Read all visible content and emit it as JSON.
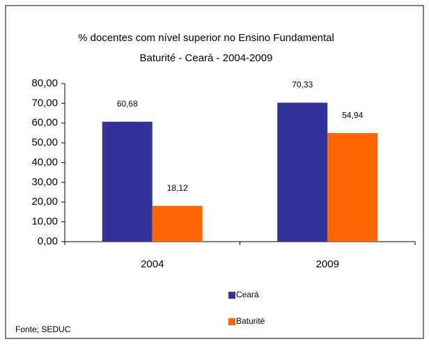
{
  "chart_data": {
    "type": "bar",
    "title": "% docentes com nível superior no Ensino Fundamental",
    "subtitle": "Baturité  -  Ceará - 2004-2009",
    "categories": [
      "2004",
      "2009"
    ],
    "series": [
      {
        "name": "Ceará",
        "color": "#333399",
        "values": [
          60.68,
          70.33
        ],
        "value_labels": [
          "60,68",
          "70,33"
        ]
      },
      {
        "name": "Baturité",
        "color": "#ff6600",
        "values": [
          18.12,
          54.94
        ],
        "value_labels": [
          "18,12",
          "54,94"
        ]
      }
    ],
    "ylim": [
      0,
      80
    ],
    "yticks": [
      {
        "value": 0,
        "label": "0,00"
      },
      {
        "value": 10,
        "label": "10,00"
      },
      {
        "value": 20,
        "label": "20,00"
      },
      {
        "value": 30,
        "label": "30,00"
      },
      {
        "value": 40,
        "label": "40,00"
      },
      {
        "value": 50,
        "label": "50,00"
      },
      {
        "value": 60,
        "label": "60,00"
      },
      {
        "value": 70,
        "label": "70,00"
      },
      {
        "value": 80,
        "label": "80,00"
      }
    ],
    "legend": "bottom",
    "source": "Fonte; SEDUC"
  }
}
